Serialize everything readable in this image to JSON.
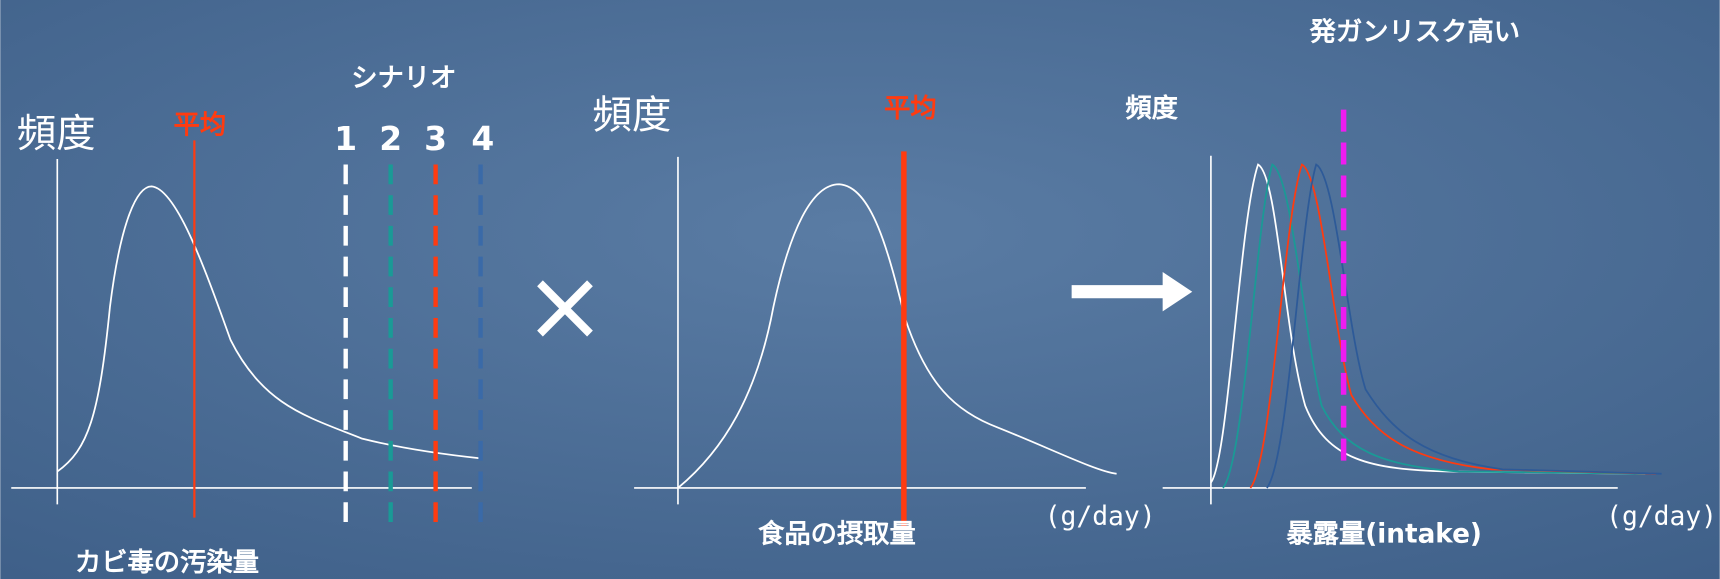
{
  "panels": [
    {
      "y_label": "頻度",
      "mean_label": "平均",
      "scenario_title": "シナリオ",
      "scenarios": [
        "1",
        "2",
        "3",
        "4"
      ],
      "x_label": "カビ毒の汚染量"
    },
    {
      "y_label": "頻度",
      "mean_label": "平均",
      "x_label": "食品の摂取量",
      "unit": "(g/day)"
    },
    {
      "title": "発ガンリスク高い",
      "y_label": "頻度",
      "x_label": "暴露量(intake)",
      "unit": "(g/day)"
    }
  ],
  "operator": "×"
}
